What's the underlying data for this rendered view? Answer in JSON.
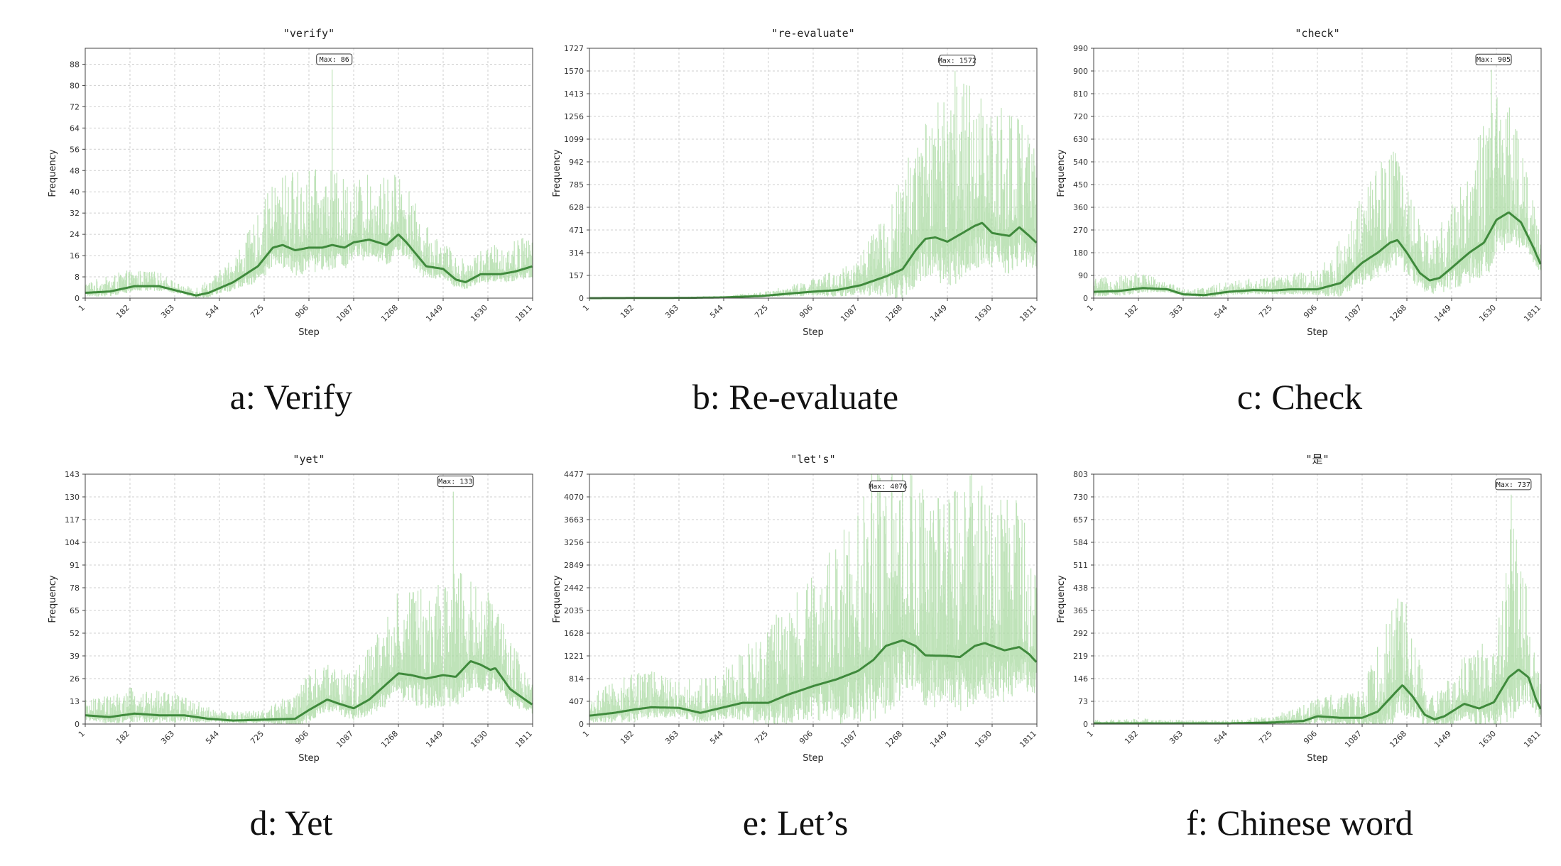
{
  "chart_data": [
    {
      "type": "line",
      "title": "\"verify\"",
      "caption": "a: Verify",
      "xlabel": "Step",
      "ylabel": "Frequency",
      "xticks": [
        "1",
        "182",
        "363",
        "544",
        "725",
        "906",
        "1087",
        "1268",
        "1449",
        "1630",
        "1811"
      ],
      "yticks": [
        0,
        8,
        16,
        24,
        32,
        40,
        48,
        56,
        64,
        72,
        80,
        88
      ],
      "ylim": [
        0,
        94
      ],
      "xlim": [
        1,
        1811
      ],
      "max_label": "Max: 86",
      "max_at": 1000,
      "grid": true,
      "trend": [
        [
          1,
          2
        ],
        [
          100,
          2.5
        ],
        [
          200,
          4.5
        ],
        [
          300,
          4.5
        ],
        [
          363,
          3
        ],
        [
          450,
          1
        ],
        [
          500,
          2
        ],
        [
          600,
          6
        ],
        [
          700,
          12
        ],
        [
          760,
          19
        ],
        [
          800,
          20
        ],
        [
          850,
          18
        ],
        [
          906,
          19
        ],
        [
          960,
          19
        ],
        [
          1000,
          20
        ],
        [
          1050,
          19
        ],
        [
          1087,
          21
        ],
        [
          1150,
          22
        ],
        [
          1220,
          20
        ],
        [
          1268,
          24
        ],
        [
          1300,
          21
        ],
        [
          1380,
          12
        ],
        [
          1449,
          11
        ],
        [
          1500,
          7
        ],
        [
          1540,
          6
        ],
        [
          1600,
          9
        ],
        [
          1680,
          9
        ],
        [
          1740,
          10
        ],
        [
          1811,
          12
        ]
      ],
      "spread": [
        [
          1,
          4
        ],
        [
          150,
          6
        ],
        [
          300,
          5
        ],
        [
          400,
          2
        ],
        [
          544,
          6
        ],
        [
          640,
          12
        ],
        [
          725,
          20
        ],
        [
          850,
          28
        ],
        [
          1000,
          26
        ],
        [
          1100,
          22
        ],
        [
          1268,
          24
        ],
        [
          1350,
          16
        ],
        [
          1449,
          10
        ],
        [
          1550,
          8
        ],
        [
          1650,
          10
        ],
        [
          1811,
          12
        ]
      ]
    },
    {
      "type": "line",
      "title": "\"re-evaluate\"",
      "caption": "b: Re-evaluate",
      "xlabel": "Step",
      "ylabel": "Frequency",
      "xticks": [
        "1",
        "182",
        "363",
        "544",
        "725",
        "906",
        "1087",
        "1268",
        "1449",
        "1630",
        "1811"
      ],
      "yticks": [
        0,
        157,
        314,
        471,
        628,
        785,
        942,
        1099,
        1256,
        1413,
        1570,
        1727
      ],
      "ylim": [
        0,
        1727
      ],
      "xlim": [
        1,
        1811
      ],
      "max_label": "Max: 1572",
      "max_at": 1480,
      "grid": true,
      "trend": [
        [
          1,
          0
        ],
        [
          400,
          2
        ],
        [
          544,
          5
        ],
        [
          700,
          15
        ],
        [
          800,
          30
        ],
        [
          906,
          45
        ],
        [
          1000,
          55
        ],
        [
          1100,
          90
        ],
        [
          1200,
          150
        ],
        [
          1268,
          200
        ],
        [
          1320,
          330
        ],
        [
          1360,
          410
        ],
        [
          1400,
          420
        ],
        [
          1449,
          390
        ],
        [
          1500,
          440
        ],
        [
          1560,
          500
        ],
        [
          1590,
          520
        ],
        [
          1630,
          450
        ],
        [
          1700,
          430
        ],
        [
          1740,
          490
        ],
        [
          1780,
          430
        ],
        [
          1811,
          380
        ]
      ],
      "spread": [
        [
          1,
          2
        ],
        [
          544,
          10
        ],
        [
          725,
          30
        ],
        [
          906,
          80
        ],
        [
          1087,
          180
        ],
        [
          1200,
          400
        ],
        [
          1268,
          600
        ],
        [
          1400,
          900
        ],
        [
          1500,
          1000
        ],
        [
          1600,
          800
        ],
        [
          1700,
          800
        ],
        [
          1811,
          600
        ]
      ]
    },
    {
      "type": "line",
      "title": "\"check\"",
      "caption": "c: Check",
      "xlabel": "Step",
      "ylabel": "Frequency",
      "xticks": [
        "1",
        "182",
        "363",
        "544",
        "725",
        "906",
        "1087",
        "1268",
        "1449",
        "1630",
        "1811"
      ],
      "yticks": [
        0,
        90,
        180,
        270,
        360,
        450,
        540,
        630,
        720,
        810,
        900,
        990
      ],
      "ylim": [
        0,
        990
      ],
      "xlim": [
        1,
        1811
      ],
      "max_label": "Max: 905",
      "max_at": 1610,
      "grid": true,
      "trend": [
        [
          1,
          25
        ],
        [
          100,
          28
        ],
        [
          200,
          40
        ],
        [
          300,
          35
        ],
        [
          363,
          15
        ],
        [
          450,
          12
        ],
        [
          544,
          25
        ],
        [
          650,
          32
        ],
        [
          725,
          30
        ],
        [
          800,
          35
        ],
        [
          906,
          35
        ],
        [
          1000,
          60
        ],
        [
          1087,
          140
        ],
        [
          1150,
          180
        ],
        [
          1200,
          220
        ],
        [
          1230,
          230
        ],
        [
          1268,
          180
        ],
        [
          1320,
          100
        ],
        [
          1360,
          70
        ],
        [
          1400,
          80
        ],
        [
          1449,
          120
        ],
        [
          1520,
          180
        ],
        [
          1580,
          220
        ],
        [
          1630,
          310
        ],
        [
          1680,
          340
        ],
        [
          1730,
          300
        ],
        [
          1780,
          200
        ],
        [
          1811,
          130
        ]
      ],
      "spread": [
        [
          1,
          50
        ],
        [
          182,
          60
        ],
        [
          363,
          20
        ],
        [
          544,
          40
        ],
        [
          725,
          50
        ],
        [
          906,
          70
        ],
        [
          1087,
          250
        ],
        [
          1200,
          350
        ],
        [
          1268,
          250
        ],
        [
          1360,
          150
        ],
        [
          1449,
          250
        ],
        [
          1560,
          400
        ],
        [
          1630,
          500
        ],
        [
          1700,
          350
        ],
        [
          1811,
          100
        ]
      ]
    },
    {
      "type": "line",
      "title": "\"yet\"",
      "caption": "d: Yet",
      "xlabel": "Step",
      "ylabel": "Frequency",
      "xticks": [
        "1",
        "182",
        "363",
        "544",
        "725",
        "906",
        "1087",
        "1268",
        "1449",
        "1630",
        "1811"
      ],
      "yticks": [
        0,
        13,
        26,
        39,
        52,
        65,
        78,
        91,
        104,
        117,
        130,
        143
      ],
      "ylim": [
        0,
        143
      ],
      "xlim": [
        1,
        1811
      ],
      "max_label": "Max: 133",
      "max_at": 1490,
      "grid": true,
      "trend": [
        [
          1,
          5
        ],
        [
          100,
          4
        ],
        [
          200,
          6
        ],
        [
          300,
          5
        ],
        [
          400,
          5
        ],
        [
          500,
          3
        ],
        [
          600,
          2
        ],
        [
          725,
          2.5
        ],
        [
          850,
          3
        ],
        [
          906,
          8
        ],
        [
          980,
          14
        ],
        [
          1020,
          12
        ],
        [
          1087,
          9
        ],
        [
          1150,
          14
        ],
        [
          1268,
          29
        ],
        [
          1320,
          28
        ],
        [
          1380,
          26
        ],
        [
          1449,
          28
        ],
        [
          1500,
          27
        ],
        [
          1560,
          36
        ],
        [
          1600,
          34
        ],
        [
          1640,
          31
        ],
        [
          1660,
          32
        ],
        [
          1720,
          20
        ],
        [
          1780,
          14
        ],
        [
          1811,
          11
        ]
      ],
      "spread": [
        [
          1,
          8
        ],
        [
          182,
          14
        ],
        [
          363,
          12
        ],
        [
          544,
          5
        ],
        [
          725,
          5
        ],
        [
          906,
          20
        ],
        [
          1000,
          20
        ],
        [
          1100,
          20
        ],
        [
          1268,
          45
        ],
        [
          1400,
          50
        ],
        [
          1500,
          55
        ],
        [
          1630,
          40
        ],
        [
          1811,
          15
        ]
      ]
    },
    {
      "type": "line",
      "title": "\"let's\"",
      "caption": "e: Let’s",
      "xlabel": "Step",
      "ylabel": "Frequency",
      "xticks": [
        "1",
        "182",
        "363",
        "544",
        "725",
        "906",
        "1087",
        "1268",
        "1449",
        "1630",
        "1811"
      ],
      "yticks": [
        0,
        407,
        814,
        1221,
        1628,
        2035,
        2442,
        2849,
        3256,
        3663,
        4070,
        4477
      ],
      "ylim": [
        0,
        4477
      ],
      "xlim": [
        1,
        1811
      ],
      "max_label": "Max: 4076",
      "max_at": 1200,
      "grid": true,
      "trend": [
        [
          1,
          150
        ],
        [
          100,
          200
        ],
        [
          182,
          260
        ],
        [
          250,
          300
        ],
        [
          363,
          290
        ],
        [
          450,
          200
        ],
        [
          544,
          300
        ],
        [
          620,
          380
        ],
        [
          725,
          380
        ],
        [
          800,
          520
        ],
        [
          906,
          680
        ],
        [
          1000,
          800
        ],
        [
          1087,
          950
        ],
        [
          1150,
          1150
        ],
        [
          1200,
          1400
        ],
        [
          1268,
          1500
        ],
        [
          1320,
          1400
        ],
        [
          1360,
          1230
        ],
        [
          1449,
          1220
        ],
        [
          1500,
          1200
        ],
        [
          1560,
          1400
        ],
        [
          1600,
          1450
        ],
        [
          1680,
          1320
        ],
        [
          1740,
          1380
        ],
        [
          1780,
          1250
        ],
        [
          1811,
          1100
        ]
      ],
      "spread": [
        [
          1,
          350
        ],
        [
          182,
          650
        ],
        [
          363,
          500
        ],
        [
          544,
          600
        ],
        [
          725,
          1300
        ],
        [
          906,
          1800
        ],
        [
          1087,
          2700
        ],
        [
          1200,
          3500
        ],
        [
          1300,
          2800
        ],
        [
          1449,
          2600
        ],
        [
          1560,
          3000
        ],
        [
          1700,
          2600
        ],
        [
          1811,
          1800
        ]
      ]
    },
    {
      "type": "line",
      "title": "\"是\"",
      "caption": "f: Chinese word",
      "xlabel": "Step",
      "ylabel": "Frequency",
      "xticks": [
        "1",
        "182",
        "363",
        "544",
        "725",
        "906",
        "1087",
        "1268",
        "1449",
        "1630",
        "1811"
      ],
      "yticks": [
        0,
        73,
        146,
        219,
        292,
        365,
        438,
        511,
        584,
        657,
        730,
        803
      ],
      "ylim": [
        0,
        803
      ],
      "xlim": [
        1,
        1811
      ],
      "max_label": "Max: 737",
      "max_at": 1690,
      "grid": true,
      "trend": [
        [
          1,
          2
        ],
        [
          363,
          2
        ],
        [
          544,
          2
        ],
        [
          725,
          5
        ],
        [
          850,
          10
        ],
        [
          906,
          25
        ],
        [
          1000,
          20
        ],
        [
          1087,
          20
        ],
        [
          1150,
          40
        ],
        [
          1220,
          100
        ],
        [
          1250,
          125
        ],
        [
          1290,
          90
        ],
        [
          1340,
          30
        ],
        [
          1380,
          15
        ],
        [
          1420,
          25
        ],
        [
          1500,
          65
        ],
        [
          1560,
          50
        ],
        [
          1620,
          70
        ],
        [
          1680,
          150
        ],
        [
          1720,
          175
        ],
        [
          1760,
          150
        ],
        [
          1790,
          80
        ],
        [
          1811,
          45
        ]
      ],
      "spread": [
        [
          1,
          10
        ],
        [
          182,
          15
        ],
        [
          363,
          10
        ],
        [
          544,
          10
        ],
        [
          725,
          20
        ],
        [
          906,
          60
        ],
        [
          1087,
          80
        ],
        [
          1200,
          300
        ],
        [
          1268,
          250
        ],
        [
          1360,
          60
        ],
        [
          1449,
          120
        ],
        [
          1600,
          200
        ],
        [
          1690,
          450
        ],
        [
          1760,
          250
        ],
        [
          1811,
          80
        ]
      ]
    }
  ]
}
